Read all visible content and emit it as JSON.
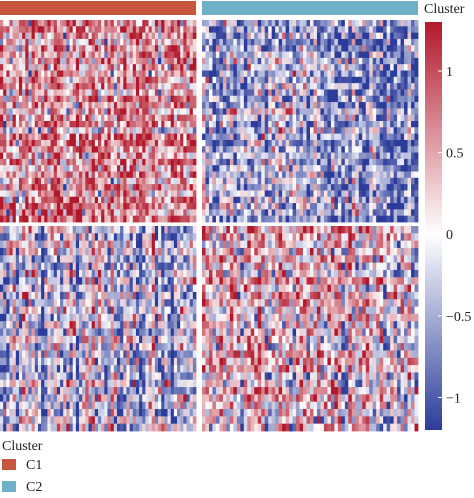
{
  "chart_data": {
    "type": "heatmap",
    "title": "",
    "xlabel": "",
    "ylabel": "",
    "annotation": {
      "title": "Cluster",
      "groups": [
        {
          "label": "C1",
          "color": "#c8553d"
        },
        {
          "label": "C2",
          "color": "#6fb0c9"
        }
      ]
    },
    "colorbar": {
      "ticks": [
        1,
        0.5,
        0,
        -0.5,
        -1
      ],
      "tick_labels": [
        "1",
        "0.5",
        "0",
        "−0.5",
        "−1"
      ],
      "range": [
        -1.2,
        1.3
      ],
      "colors": {
        "high": "#b2182b",
        "mid": "#ffffff",
        "low": "#2c3c9a"
      }
    },
    "row_groups": [
      {
        "name": "",
        "rows": 32
      },
      {
        "name": "",
        "rows": 28
      }
    ],
    "column_groups": [
      {
        "cluster": "C1",
        "columns": 62
      },
      {
        "cluster": "C2",
        "columns": 62
      }
    ],
    "block_means": [
      {
        "row_group": 0,
        "column_group": "C1",
        "mean": 0.55
      },
      {
        "row_group": 0,
        "column_group": "C2",
        "mean": -0.45
      },
      {
        "row_group": 1,
        "column_group": "C1",
        "mean": -0.2
      },
      {
        "row_group": 1,
        "column_group": "C2",
        "mean": 0.2
      }
    ],
    "legend": {
      "title": "Cluster",
      "items": [
        {
          "label": "C1",
          "color": "#c8553d"
        },
        {
          "label": "C2",
          "color": "#6fb0c9"
        }
      ]
    }
  }
}
